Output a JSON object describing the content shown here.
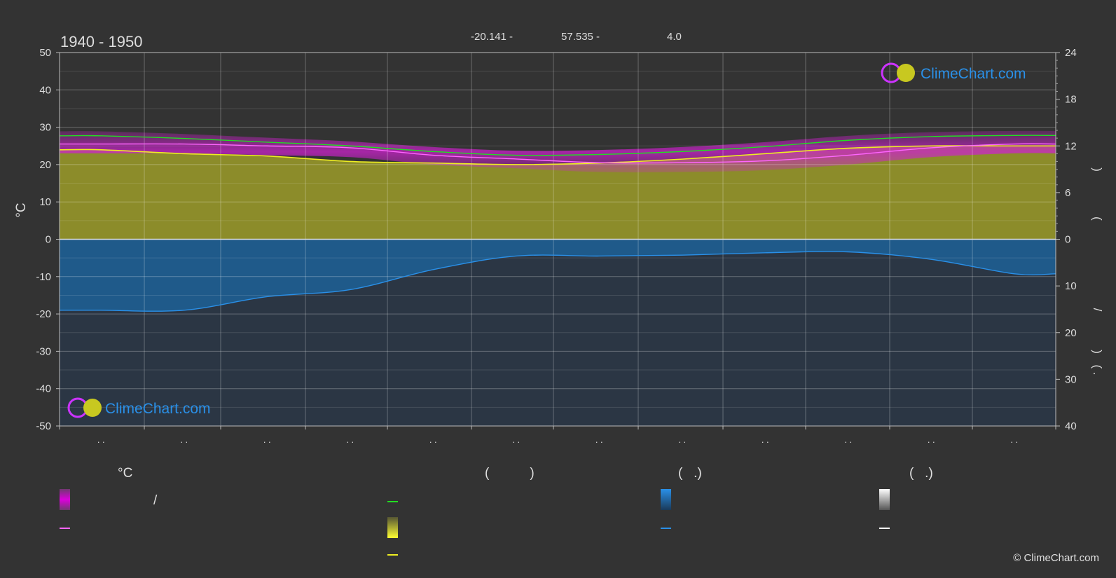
{
  "header": {
    "period": "1940 - 1950",
    "lat": "-20.141 -",
    "lon": "57.535 -",
    "elev": "4.0"
  },
  "branding": {
    "logo_text": "ClimeChart.com",
    "copyright": "© ClimeChart.com"
  },
  "colors": {
    "background": "#333333",
    "max_temp_line": "#22dd22",
    "day_temp_line": "#ff66ff",
    "sun_line": "#eeee22",
    "sun_fill": "#8c8c2a",
    "precip_line": "#2a90e8",
    "precip_fill": "#1f5a8a",
    "temp_band": "#cc22cc",
    "logo_blue": "#2a90e8"
  },
  "legend": {
    "temp_header": "°C",
    "sun_header": "(           )",
    "rain_header": "(   .)",
    "snow_header": "(   .)",
    "temp_range_sep": "/"
  },
  "chart_data": {
    "type": "line",
    "months": [
      1,
      2,
      3,
      4,
      5,
      6,
      7,
      8,
      9,
      10,
      11,
      12
    ],
    "x_tick_labels": [
      ". .",
      ". .",
      ". .",
      ". .",
      ". .",
      ". .",
      ". .",
      ". .",
      ". .",
      ". .",
      ". .",
      ". ."
    ],
    "left_axis": {
      "label": "°C",
      "range": [
        -50,
        50
      ],
      "ticks": [
        50,
        40,
        30,
        20,
        10,
        0,
        -10,
        -20,
        -30,
        -40,
        -50
      ]
    },
    "right_axis_top": {
      "range": [
        0,
        24
      ],
      "ticks": [
        24,
        18,
        12,
        6,
        0
      ]
    },
    "right_axis_bottom": {
      "range": [
        0,
        40
      ],
      "ticks": [
        10,
        20,
        30,
        40
      ]
    },
    "right_axis_glyphs": [
      ")",
      "(",
      "/",
      ")",
      "( ."
    ],
    "grid": true,
    "series": [
      {
        "key": "max_temp",
        "values": [
          27.7,
          27.0,
          26.0,
          25.0,
          23.5,
          22.5,
          22.7,
          23.5,
          24.8,
          26.5,
          27.5,
          27.8
        ]
      },
      {
        "key": "day_temp",
        "values": [
          25.5,
          25.5,
          25.0,
          24.5,
          22.5,
          21.5,
          20.5,
          20.5,
          21.0,
          22.5,
          24.5,
          25.5
        ]
      },
      {
        "key": "sunshine_hours",
        "values": [
          11.5,
          11.0,
          10.7,
          10.0,
          9.8,
          9.6,
          9.8,
          10.3,
          11.0,
          11.7,
          12.0,
          12.0
        ]
      },
      {
        "key": "precip_mm",
        "values": [
          15.2,
          15.2,
          12.3,
          10.8,
          6.5,
          3.6,
          3.6,
          3.4,
          2.9,
          2.7,
          4.3,
          7.4
        ]
      }
    ]
  }
}
